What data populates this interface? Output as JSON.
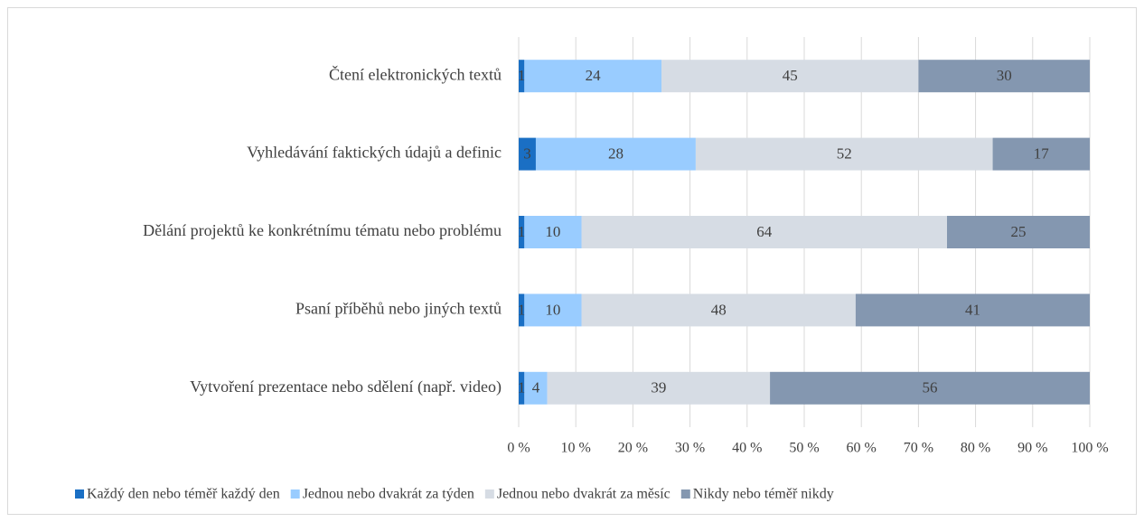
{
  "chart_data": {
    "type": "stacked_bar_horizontal",
    "categories": [
      "Čtení elektronických textů",
      "Vyhledávání faktických údajů a definic",
      "Dělání projektů ke konkrétnímu tématu nebo problému",
      "Psaní příběhů nebo jiných textů",
      "Vytvoření prezentace nebo sdělení (např. video)"
    ],
    "series": [
      {
        "name": "Každý den nebo téměř každý den",
        "color": "#1a6fc4",
        "values": [
          1,
          3,
          1,
          1,
          1
        ]
      },
      {
        "name": "Jednou nebo dvakrát za týden",
        "color": "#99ccff",
        "values": [
          24,
          28,
          10,
          10,
          4
        ]
      },
      {
        "name": "Jednou nebo dvakrát za měsíc",
        "color": "#d6dce4",
        "values": [
          45,
          52,
          64,
          48,
          39
        ]
      },
      {
        "name": "Nikdy nebo téměř nikdy",
        "color": "#8497b0",
        "values": [
          30,
          17,
          25,
          41,
          56
        ]
      }
    ],
    "xlim": [
      0,
      100
    ],
    "xticks": [
      {
        "value": 0,
        "label": "0 %"
      },
      {
        "value": 10,
        "label": "10 %"
      },
      {
        "value": 20,
        "label": "20 %"
      },
      {
        "value": 30,
        "label": "30 %"
      },
      {
        "value": 40,
        "label": "40 %"
      },
      {
        "value": 50,
        "label": "50 %"
      },
      {
        "value": 60,
        "label": "60 %"
      },
      {
        "value": 70,
        "label": "70 %"
      },
      {
        "value": 80,
        "label": "80 %"
      },
      {
        "value": 90,
        "label": "90 %"
      },
      {
        "value": 100,
        "label": "100 %"
      }
    ],
    "grid": true,
    "legend": "bottom"
  }
}
